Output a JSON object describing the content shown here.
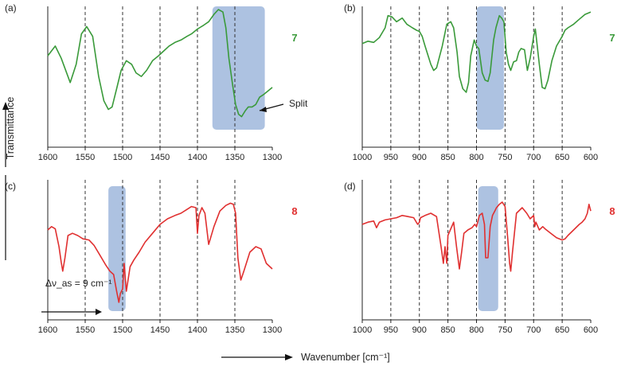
{
  "figure": {
    "ylabel": "Transmittance",
    "xlabel": "Wavenumber [cm⁻¹]"
  },
  "chart_data": [
    {
      "type": "line",
      "panel": "(a)",
      "compound": "7",
      "color": "#3a9a3a",
      "xlim": [
        1600,
        1300
      ],
      "xticks": [
        1600,
        1550,
        1500,
        1450,
        1400,
        1350,
        1300
      ],
      "dashed_lines": [
        1550,
        1500,
        1450,
        1400,
        1350
      ],
      "highlight": [
        1380,
        1310
      ],
      "annotation": "Split",
      "x": [
        1600,
        1590,
        1582,
        1570,
        1562,
        1555,
        1548,
        1540,
        1532,
        1525,
        1519,
        1514,
        1508,
        1502,
        1495,
        1488,
        1482,
        1475,
        1468,
        1460,
        1452,
        1445,
        1438,
        1430,
        1422,
        1414,
        1408,
        1400,
        1392,
        1385,
        1378,
        1372,
        1366,
        1362,
        1358,
        1353,
        1349,
        1345,
        1341,
        1336,
        1332,
        1327,
        1322,
        1317,
        1312,
        1306,
        1300
      ],
      "y": [
        0.62,
        0.7,
        0.6,
        0.4,
        0.55,
        0.8,
        0.86,
        0.78,
        0.45,
        0.25,
        0.18,
        0.2,
        0.35,
        0.5,
        0.58,
        0.55,
        0.48,
        0.45,
        0.5,
        0.58,
        0.62,
        0.66,
        0.7,
        0.73,
        0.75,
        0.78,
        0.8,
        0.84,
        0.87,
        0.9,
        0.96,
        1.0,
        0.98,
        0.85,
        0.6,
        0.38,
        0.22,
        0.14,
        0.12,
        0.17,
        0.2,
        0.2,
        0.22,
        0.28,
        0.3,
        0.33,
        0.36
      ]
    },
    {
      "type": "line",
      "panel": "(b)",
      "compound": "7",
      "color": "#3a9a3a",
      "xlim": [
        1000,
        600
      ],
      "xticks": [
        1000,
        950,
        900,
        850,
        800,
        750,
        700,
        650,
        600
      ],
      "dashed_lines": [
        950,
        900,
        850,
        800,
        750,
        700,
        650
      ],
      "highlight": [
        800,
        752
      ],
      "x": [
        1000,
        990,
        980,
        970,
        960,
        955,
        948,
        940,
        930,
        922,
        912,
        905,
        900,
        895,
        890,
        880,
        875,
        870,
        860,
        852,
        845,
        840,
        834,
        830,
        824,
        818,
        814,
        810,
        804,
        800,
        796,
        790,
        785,
        780,
        776,
        770,
        766,
        760,
        756,
        752,
        748,
        744,
        740,
        735,
        730,
        726,
        722,
        716,
        711,
        706,
        700,
        697,
        690,
        685,
        680,
        675,
        668,
        660,
        650,
        645,
        640,
        630,
        620,
        610,
        600
      ],
      "y": [
        0.72,
        0.74,
        0.73,
        0.77,
        0.85,
        0.95,
        0.94,
        0.9,
        0.93,
        0.88,
        0.85,
        0.83,
        0.82,
        0.78,
        0.7,
        0.55,
        0.5,
        0.52,
        0.7,
        0.88,
        0.9,
        0.85,
        0.65,
        0.45,
        0.35,
        0.32,
        0.4,
        0.62,
        0.75,
        0.7,
        0.68,
        0.48,
        0.42,
        0.41,
        0.48,
        0.75,
        0.85,
        0.95,
        0.93,
        0.9,
        0.65,
        0.55,
        0.5,
        0.57,
        0.58,
        0.65,
        0.68,
        0.67,
        0.5,
        0.6,
        0.78,
        0.84,
        0.55,
        0.36,
        0.35,
        0.42,
        0.58,
        0.7,
        0.78,
        0.83,
        0.85,
        0.88,
        0.92,
        0.96,
        0.98
      ]
    },
    {
      "type": "line",
      "panel": "(c)",
      "compound": "8",
      "color": "#e03030",
      "xlim": [
        1600,
        1300
      ],
      "xticks": [
        1600,
        1550,
        1500,
        1450,
        1400,
        1350,
        1300
      ],
      "dashed_lines": [
        1550,
        1500,
        1450,
        1400,
        1350
      ],
      "highlight": [
        1519,
        1496
      ],
      "annotation": "Δν_as = 9 cm⁻¹",
      "x": [
        1600,
        1595,
        1590,
        1585,
        1582,
        1580,
        1577,
        1573,
        1567,
        1560,
        1553,
        1545,
        1538,
        1530,
        1523,
        1517,
        1512,
        1508,
        1505,
        1503,
        1500,
        1498,
        1495,
        1490,
        1485,
        1478,
        1470,
        1460,
        1450,
        1440,
        1430,
        1422,
        1415,
        1408,
        1402,
        1400,
        1398,
        1394,
        1390,
        1385,
        1378,
        1370,
        1362,
        1356,
        1352,
        1349,
        1346,
        1342,
        1338,
        1330,
        1322,
        1315,
        1308,
        1300
      ],
      "y": [
        0.75,
        0.78,
        0.76,
        0.6,
        0.46,
        0.38,
        0.5,
        0.7,
        0.72,
        0.7,
        0.67,
        0.66,
        0.61,
        0.52,
        0.44,
        0.38,
        0.35,
        0.2,
        0.1,
        0.18,
        0.22,
        0.45,
        0.2,
        0.42,
        0.48,
        0.55,
        0.64,
        0.72,
        0.8,
        0.85,
        0.88,
        0.9,
        0.93,
        0.96,
        0.95,
        0.72,
        0.88,
        0.95,
        0.9,
        0.62,
        0.78,
        0.92,
        0.97,
        0.99,
        0.98,
        0.9,
        0.5,
        0.3,
        0.38,
        0.55,
        0.6,
        0.58,
        0.45,
        0.4
      ]
    },
    {
      "type": "line",
      "panel": "(d)",
      "compound": "8",
      "color": "#e03030",
      "xlim": [
        1000,
        600
      ],
      "xticks": [
        1000,
        950,
        900,
        850,
        800,
        750,
        700,
        650,
        600
      ],
      "dashed_lines": [
        950,
        900,
        850,
        800,
        750,
        700,
        650
      ],
      "highlight": [
        797,
        762
      ],
      "x": [
        1000,
        990,
        980,
        975,
        970,
        960,
        950,
        940,
        930,
        920,
        910,
        903,
        900,
        898,
        890,
        880,
        870,
        862,
        858,
        855,
        852,
        850,
        840,
        835,
        830,
        826,
        822,
        815,
        808,
        803,
        800,
        795,
        790,
        786,
        784,
        780,
        776,
        772,
        768,
        765,
        760,
        755,
        750,
        745,
        742,
        740,
        737,
        730,
        720,
        712,
        706,
        700,
        698,
        696,
        690,
        684,
        680,
        670,
        660,
        650,
        645,
        640,
        630,
        620,
        615,
        610,
        606,
        603,
        600
      ],
      "y": [
        0.8,
        0.82,
        0.83,
        0.77,
        0.82,
        0.84,
        0.85,
        0.86,
        0.88,
        0.87,
        0.86,
        0.8,
        0.82,
        0.86,
        0.88,
        0.9,
        0.87,
        0.6,
        0.45,
        0.6,
        0.45,
        0.7,
        0.82,
        0.6,
        0.4,
        0.55,
        0.72,
        0.75,
        0.77,
        0.8,
        0.78,
        0.88,
        0.9,
        0.8,
        0.5,
        0.5,
        0.78,
        0.88,
        0.92,
        0.95,
        0.98,
        1.0,
        0.96,
        0.65,
        0.45,
        0.38,
        0.55,
        0.9,
        0.95,
        0.9,
        0.85,
        0.88,
        0.78,
        0.82,
        0.75,
        0.78,
        0.76,
        0.72,
        0.68,
        0.66,
        0.67,
        0.7,
        0.75,
        0.8,
        0.82,
        0.85,
        0.9,
        0.98,
        0.92
      ]
    }
  ],
  "colors": {
    "highlight": "#8eaad6",
    "axis": "#222222",
    "dash": "#333333"
  }
}
